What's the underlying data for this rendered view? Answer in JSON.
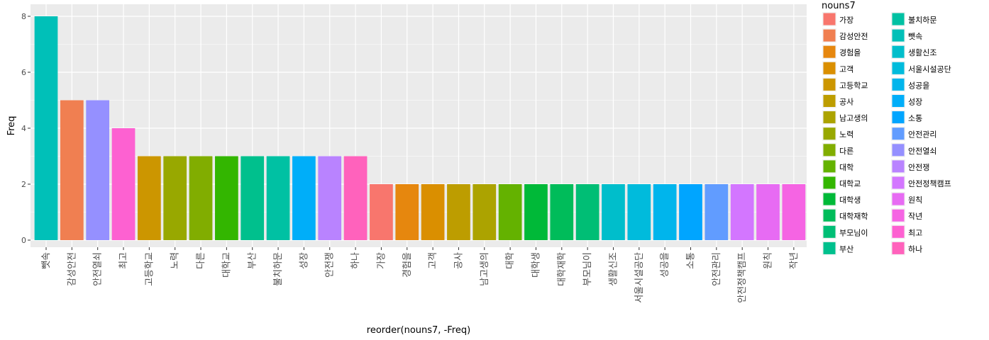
{
  "chart_data": {
    "type": "bar",
    "xlabel": "reorder(nouns7, -Freq)",
    "ylabel": "Freq",
    "ylim": [
      0,
      8
    ],
    "yticks": [
      0,
      2,
      4,
      6,
      8
    ],
    "grid": true,
    "legend": {
      "title": "nouns7",
      "placement": "right",
      "columns": 2,
      "entries": [
        {
          "label": "가장",
          "color": "#F8766D"
        },
        {
          "label": "감성안전",
          "color": "#F07F51"
        },
        {
          "label": "경험을",
          "color": "#E6870E"
        },
        {
          "label": "고객",
          "color": "#DA8F00"
        },
        {
          "label": "고등학교",
          "color": "#CC9600"
        },
        {
          "label": "공사",
          "color": "#BD9D00"
        },
        {
          "label": "남고생의",
          "color": "#ACA300"
        },
        {
          "label": "노력",
          "color": "#98A800"
        },
        {
          "label": "다른",
          "color": "#81AD00"
        },
        {
          "label": "대학",
          "color": "#64B200"
        },
        {
          "label": "대학교",
          "color": "#33B600"
        },
        {
          "label": "대학생",
          "color": "#00B938"
        },
        {
          "label": "대학재학",
          "color": "#00BC5A"
        },
        {
          "label": "부모님이",
          "color": "#00BE75"
        },
        {
          "label": "부산",
          "color": "#00C08D"
        },
        {
          "label": "불치하문",
          "color": "#00C1A3"
        },
        {
          "label": "뺏속",
          "color": "#00C0B8"
        },
        {
          "label": "생활신조",
          "color": "#00BECB"
        },
        {
          "label": "서울시설공단",
          "color": "#00BBDC"
        },
        {
          "label": "성공을",
          "color": "#00B5EC"
        },
        {
          "label": "성장",
          "color": "#00AEF9"
        },
        {
          "label": "소통",
          "color": "#00A5FF"
        },
        {
          "label": "안전관리",
          "color": "#619CFF"
        },
        {
          "label": "안전열쇠",
          "color": "#9590FF"
        },
        {
          "label": "안전쟁",
          "color": "#B983FF"
        },
        {
          "label": "안전정책캠프",
          "color": "#D376FF"
        },
        {
          "label": "원칙",
          "color": "#E76BF3"
        },
        {
          "label": "작년",
          "color": "#F564E3"
        },
        {
          "label": "최고",
          "color": "#FD61D1"
        },
        {
          "label": "하나",
          "color": "#FF62BC"
        }
      ]
    },
    "categories": [
      "뺏속",
      "감성안전",
      "안전열쇠",
      "최고",
      "고등학교",
      "노력",
      "다른",
      "대학교",
      "부산",
      "불치하문",
      "성장",
      "안전쟁",
      "하나",
      "가장",
      "경험을",
      "고객",
      "공사",
      "남고생의",
      "대학",
      "대학생",
      "대학재학",
      "부모님이",
      "생활신조",
      "서울시설공단",
      "성공을",
      "소통",
      "안전관리",
      "안전정책캠프",
      "원칙",
      "작년"
    ],
    "values": [
      8,
      5,
      5,
      4,
      3,
      3,
      3,
      3,
      3,
      3,
      3,
      3,
      3,
      2,
      2,
      2,
      2,
      2,
      2,
      2,
      2,
      2,
      2,
      2,
      2,
      2,
      2,
      2,
      2,
      2
    ],
    "colors": {
      "panel_background": "#EBEBEB",
      "gridline": "#FFFFFF"
    }
  }
}
